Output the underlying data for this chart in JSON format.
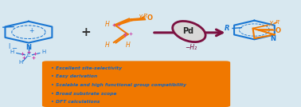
{
  "bg_color": "#d8e8f0",
  "orange_box_color": "#f07800",
  "orange_box_text_color": "#1565c0",
  "blue_color": "#1976d2",
  "orange_color": "#f07800",
  "purple_color": "#7b1040",
  "pd_fill_color": "#d8d8d8",
  "bullet_points": [
    "• Excellent site-selectivity",
    "• Easy derivation",
    "• Scalable and high functional group compatibility",
    "• Broad substrate scope",
    "• DFT calculations"
  ]
}
